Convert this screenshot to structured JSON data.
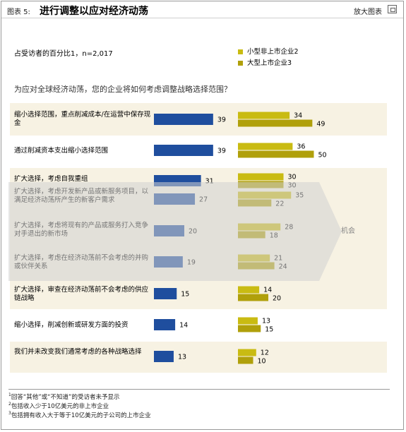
{
  "header": {
    "figure_label": "图表 5:",
    "title": "进行调整以应对经济动荡",
    "enlarge_label": "放大图表"
  },
  "respondent_note": "占受访者的百分比1，n=2,017",
  "legend": [
    {
      "label": "小型非上市企业2",
      "color": "#c9bb12"
    },
    {
      "label": "大型上市企业3",
      "color": "#b0a00b"
    }
  ],
  "question": "为应对全球经济动荡，您的企业将如何考虑调整战略选择范围？",
  "overlay_label": "机会",
  "colors": {
    "blue": "#1f4e9e",
    "yellow": "#c9bb12",
    "olive": "#b0a00b"
  },
  "chart_data": {
    "type": "bar",
    "orientation": "horizontal",
    "categories": [
      "缩小选择范围，重点削减成本/在运营中保存现金",
      "通过削减资本支出缩小选择范围",
      "扩大选择，考虑自我重组",
      "扩大选择，考虑开发新产品或新服务项目，以满足经济动荡所产生的新客户需求",
      "扩大选择，考虑将现有的产品或服务打入竞争对手退出的新市场",
      "扩大选择，考虑在经济动荡前不会考虑的并购或伙伴关系",
      "扩大选择，审查在经济动荡前不会考虑的供应链战略",
      "缩小选择，削减创新或研发方面的投资",
      "我们并未改变我们通常考虑的各种战略选择"
    ],
    "series": [
      {
        "name": "",
        "values": [
          39,
          39,
          31,
          27,
          20,
          19,
          15,
          14,
          13
        ]
      },
      {
        "name": "小型非上市企业2",
        "values": [
          34,
          36,
          30,
          35,
          28,
          21,
          14,
          13,
          12
        ]
      },
      {
        "name": "大型上市企业3",
        "values": [
          49,
          50,
          30,
          22,
          18,
          24,
          20,
          15,
          10
        ]
      }
    ]
  },
  "footnotes": [
    {
      "num": "1",
      "text": "回答“其他”或“不知道”的受访者未予显示"
    },
    {
      "num": "2",
      "text": "包括收入少于10亿美元的非上市企业"
    },
    {
      "num": "3",
      "text": "包括拥有收入大于等于10亿美元的子公司的上市企业"
    }
  ]
}
